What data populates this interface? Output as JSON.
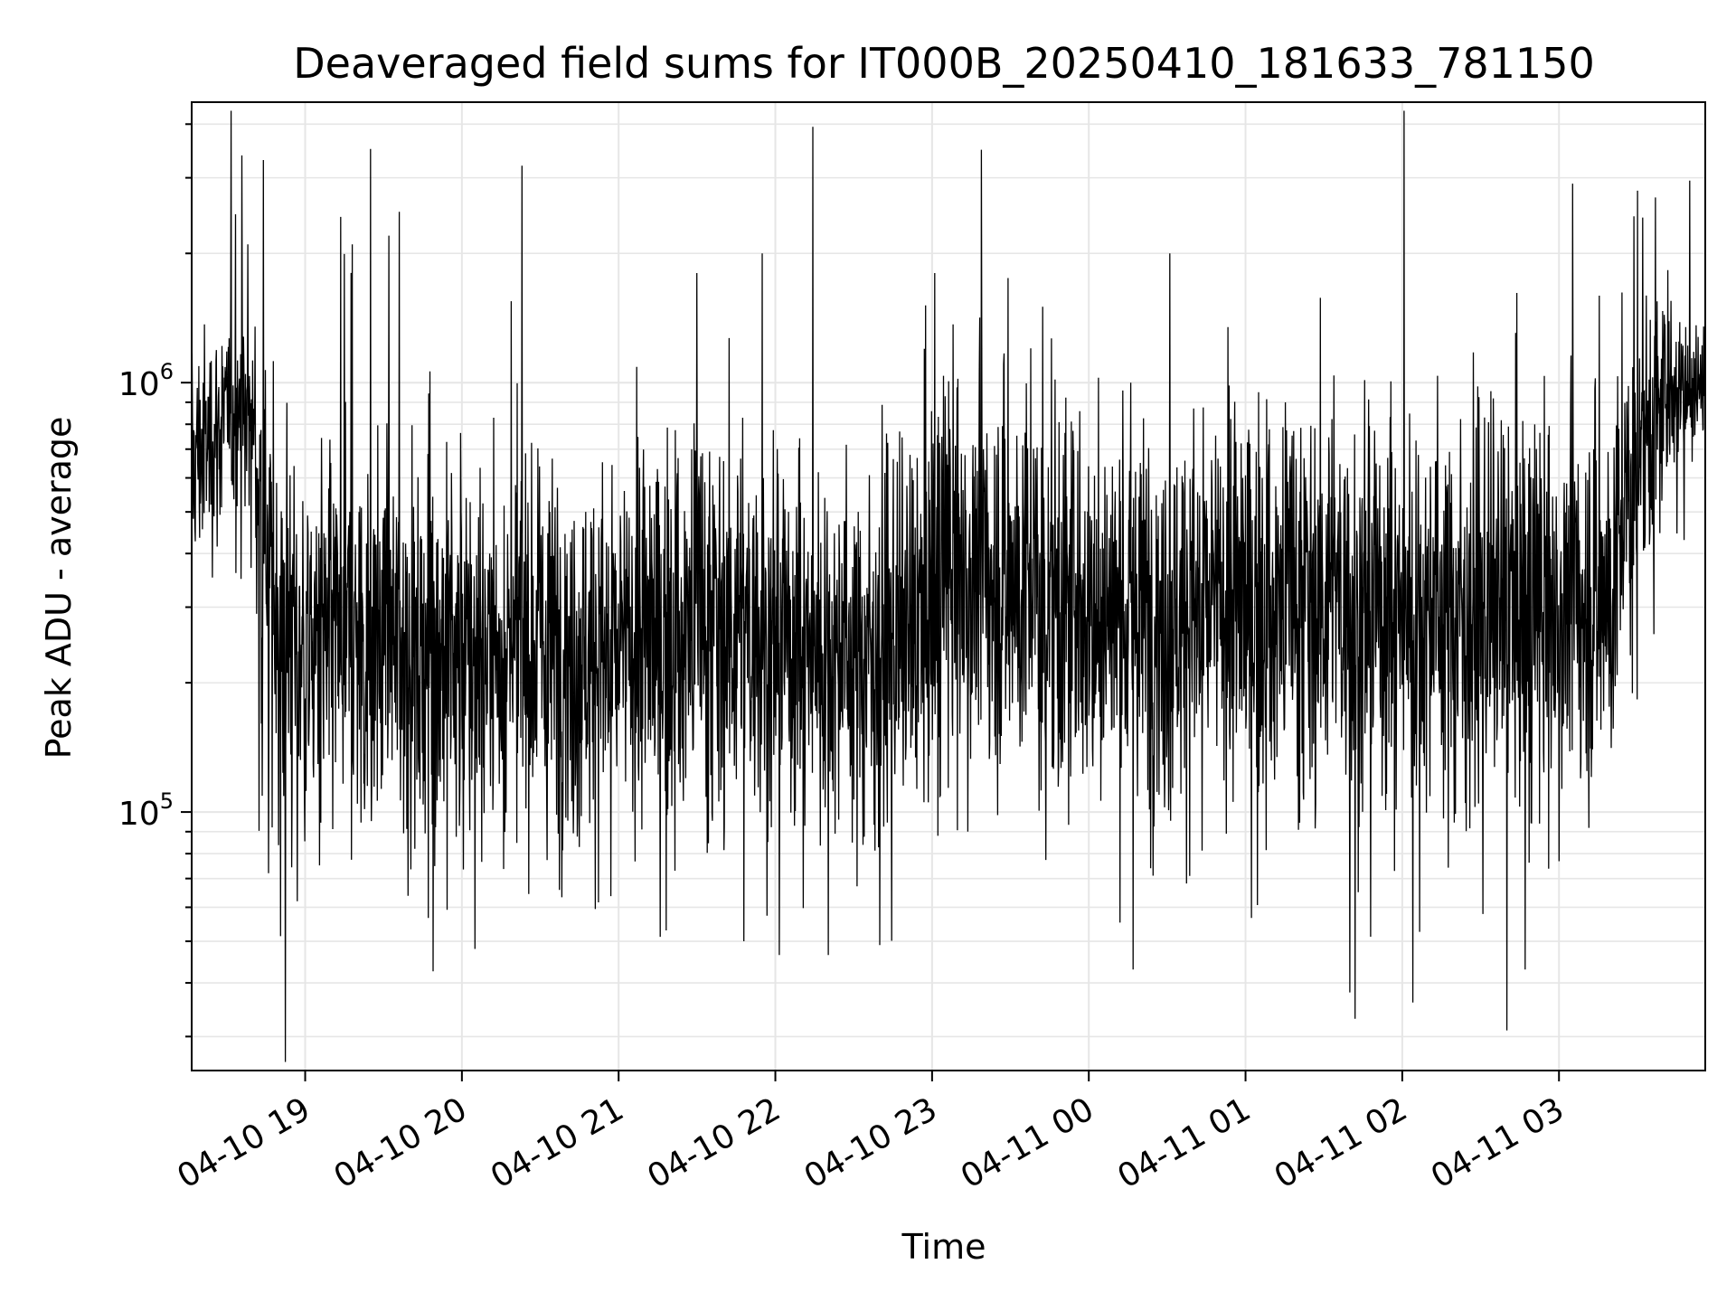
{
  "chart_data": {
    "type": "line",
    "title": "Deaveraged field sums for IT000B_20250410_181633_781150",
    "xlabel": "Time",
    "ylabel": "Peak ADU - average",
    "y_scale": "log",
    "ylim": [
      25000,
      4500000
    ],
    "xlim": [
      "2025-04-10 18:16:33",
      "2025-04-11 03:56:00"
    ],
    "grid": true,
    "line_color": "#000000",
    "x_ticks": [
      {
        "label": "04-10 19",
        "t": "2025-04-10 19:00"
      },
      {
        "label": "04-10 20",
        "t": "2025-04-10 20:00"
      },
      {
        "label": "04-10 21",
        "t": "2025-04-10 21:00"
      },
      {
        "label": "04-10 22",
        "t": "2025-04-10 22:00"
      },
      {
        "label": "04-10 23",
        "t": "2025-04-10 23:00"
      },
      {
        "label": "04-11 00",
        "t": "2025-04-11 00:00"
      },
      {
        "label": "04-11 01",
        "t": "2025-04-11 01:00"
      },
      {
        "label": "04-11 02",
        "t": "2025-04-11 02:00"
      },
      {
        "label": "04-11 03",
        "t": "2025-04-11 03:00"
      }
    ],
    "y_ticks": [
      {
        "base": "10",
        "exp": "5",
        "value": 100000
      },
      {
        "base": "10",
        "exp": "6",
        "value": 1000000
      }
    ],
    "series": [
      {
        "envelope": [
          {
            "t": "2025-04-10 18:16:33",
            "median": 650000,
            "spread": 0.14
          },
          {
            "t": "2025-04-10 18:30",
            "median": 820000,
            "spread": 0.12
          },
          {
            "t": "2025-04-10 18:40",
            "median": 780000,
            "spread": 0.15
          },
          {
            "t": "2025-04-10 18:47",
            "median": 300000,
            "spread": 0.26
          },
          {
            "t": "2025-04-10 19:00",
            "median": 230000,
            "spread": 0.23
          },
          {
            "t": "2025-04-10 19:30",
            "median": 250000,
            "spread": 0.22
          },
          {
            "t": "2025-04-10 20:00",
            "median": 230000,
            "spread": 0.24
          },
          {
            "t": "2025-04-10 20:30",
            "median": 250000,
            "spread": 0.22
          },
          {
            "t": "2025-04-10 21:00",
            "median": 230000,
            "spread": 0.22
          },
          {
            "t": "2025-04-10 21:30",
            "median": 280000,
            "spread": 0.24
          },
          {
            "t": "2025-04-10 22:00",
            "median": 260000,
            "spread": 0.22
          },
          {
            "t": "2025-04-10 22:30",
            "median": 230000,
            "spread": 0.21
          },
          {
            "t": "2025-04-10 22:55",
            "median": 260000,
            "spread": 0.22
          },
          {
            "t": "2025-04-10 23:05",
            "median": 380000,
            "spread": 0.24
          },
          {
            "t": "2025-04-10 23:30",
            "median": 340000,
            "spread": 0.23
          },
          {
            "t": "2025-04-11 00:00",
            "median": 300000,
            "spread": 0.23
          },
          {
            "t": "2025-04-11 00:30",
            "median": 290000,
            "spread": 0.23
          },
          {
            "t": "2025-04-11 01:00",
            "median": 300000,
            "spread": 0.24
          },
          {
            "t": "2025-04-11 01:30",
            "median": 320000,
            "spread": 0.24
          },
          {
            "t": "2025-04-11 02:00",
            "median": 300000,
            "spread": 0.24
          },
          {
            "t": "2025-04-11 02:30",
            "median": 290000,
            "spread": 0.23
          },
          {
            "t": "2025-04-11 03:00",
            "median": 300000,
            "spread": 0.23
          },
          {
            "t": "2025-04-11 03:20",
            "median": 320000,
            "spread": 0.22
          },
          {
            "t": "2025-04-11 03:30",
            "median": 700000,
            "spread": 0.16
          },
          {
            "t": "2025-04-11 03:45",
            "median": 1000000,
            "spread": 0.1
          },
          {
            "t": "2025-04-11 03:56",
            "median": 1000000,
            "spread": 0.09
          }
        ],
        "spikes": [
          {
            "t": "2025-04-10 18:38",
            "value": 2100000
          },
          {
            "t": "2025-04-10 18:44",
            "value": 3300000
          },
          {
            "t": "2025-04-10 19:18",
            "value": 2100000
          },
          {
            "t": "2025-04-10 19:25",
            "value": 3500000
          },
          {
            "t": "2025-04-10 19:32",
            "value": 2200000
          },
          {
            "t": "2025-04-10 19:36",
            "value": 2500000
          },
          {
            "t": "2025-04-10 20:23",
            "value": 3200000
          },
          {
            "t": "2025-04-10 21:30",
            "value": 1800000
          },
          {
            "t": "2025-04-10 21:55",
            "value": 2000000
          },
          {
            "t": "2025-04-10 23:01",
            "value": 1800000
          },
          {
            "t": "2025-04-11 00:31",
            "value": 2000000
          },
          {
            "t": "2025-04-11 03:30",
            "value": 2800000
          },
          {
            "t": "2025-04-11 03:37",
            "value": 2700000
          },
          {
            "t": "2025-04-10 18:46",
            "value": 72000
          },
          {
            "t": "2025-04-10 18:57",
            "value": 62000
          },
          {
            "t": "2025-04-10 20:05",
            "value": 48000
          },
          {
            "t": "2025-04-10 21:48",
            "value": 50000
          },
          {
            "t": "2025-04-10 22:40",
            "value": 49000
          },
          {
            "t": "2025-04-11 00:17",
            "value": 43000
          },
          {
            "t": "2025-04-11 01:40",
            "value": 38000
          },
          {
            "t": "2025-04-11 01:42",
            "value": 33000
          },
          {
            "t": "2025-04-11 02:04",
            "value": 36000
          },
          {
            "t": "2025-04-11 02:40",
            "value": 31000
          },
          {
            "t": "2025-04-11 02:47",
            "value": 43000
          }
        ]
      }
    ]
  }
}
